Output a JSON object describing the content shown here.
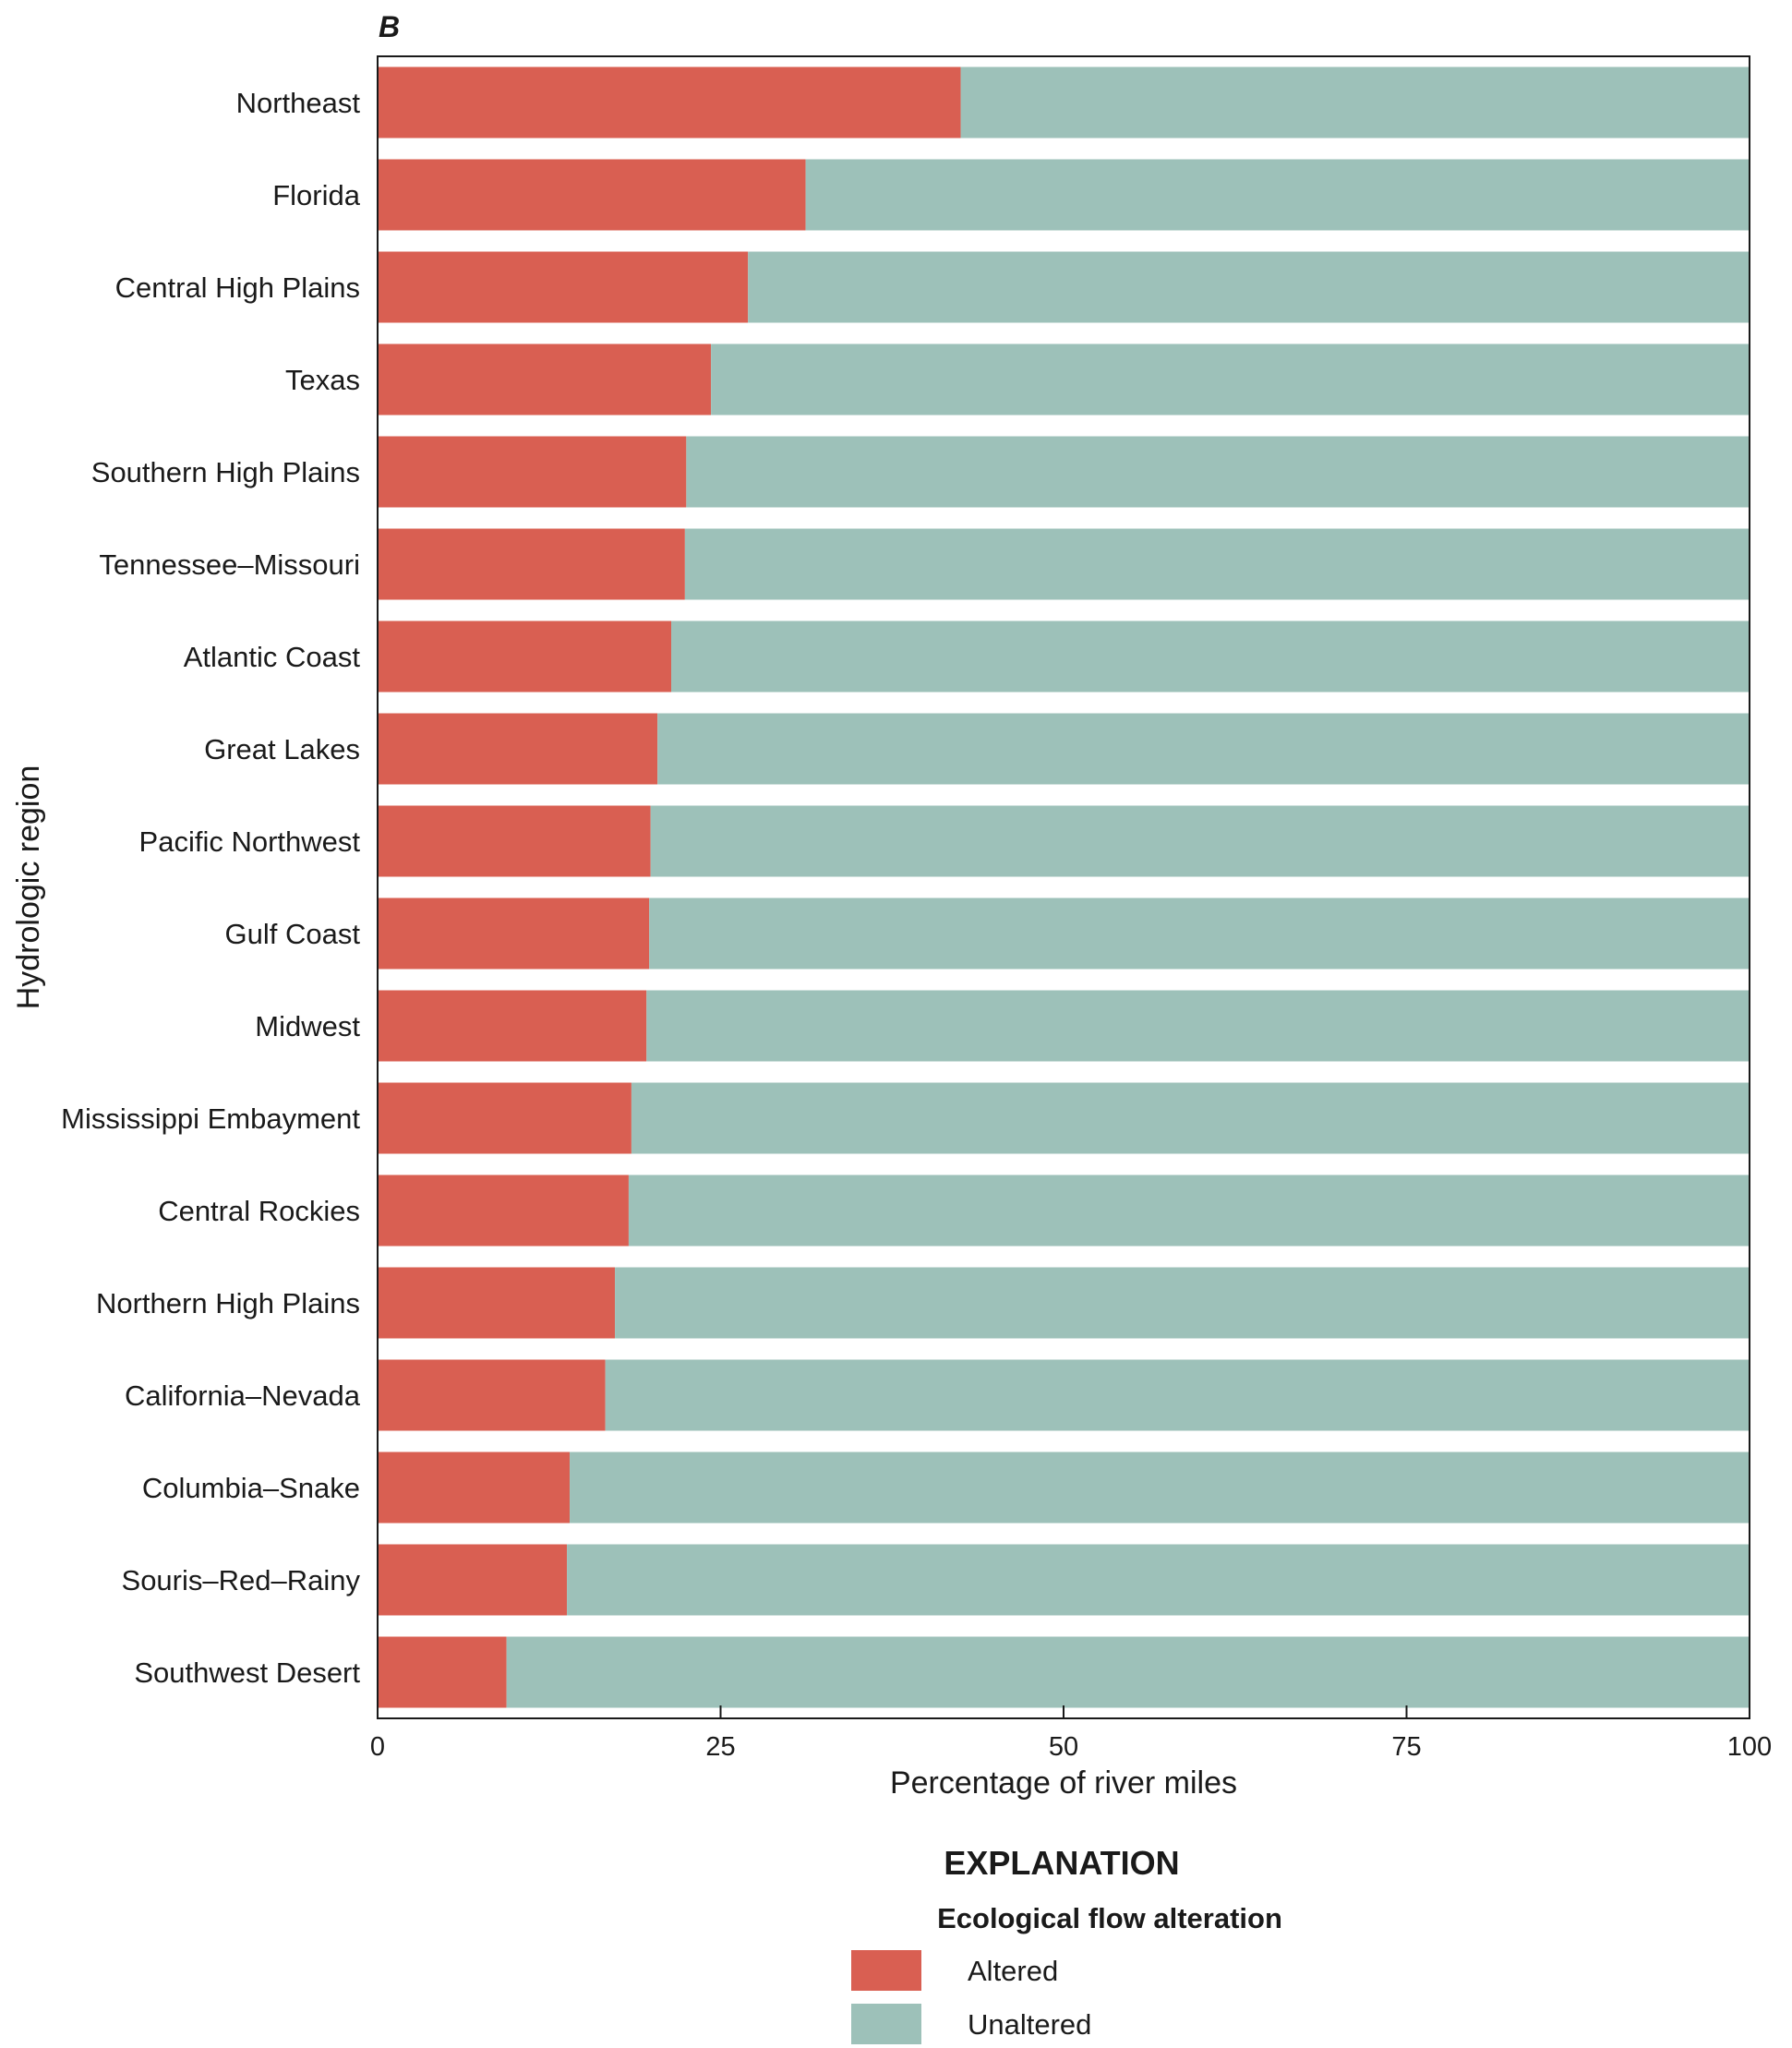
{
  "chart_data": {
    "type": "bar",
    "orientation": "horizontal",
    "stacked": true,
    "panel_label": "B",
    "xlabel": "Percentage of river miles",
    "ylabel": "Hydrologic region",
    "xlim": [
      0,
      100
    ],
    "xticks": [
      0,
      25,
      50,
      75,
      100
    ],
    "grid": false,
    "categories": [
      "Northeast",
      "Florida",
      "Central High Plains",
      "Texas",
      "Southern High Plains",
      "Tennessee–Missouri",
      "Atlantic Coast",
      "Great Lakes",
      "Pacific Northwest",
      "Gulf Coast",
      "Midwest",
      "Mississippi Embayment",
      "Central Rockies",
      "Northern High Plains",
      "California–Nevada",
      "Columbia–Snake",
      "Souris–Red–Rainy",
      "Southwest Desert"
    ],
    "series": [
      {
        "name": "Altered",
        "color": "#d95f52",
        "values": [
          42.5,
          31.2,
          27.0,
          24.3,
          22.5,
          22.4,
          21.4,
          20.4,
          19.9,
          19.8,
          19.6,
          18.5,
          18.3,
          17.3,
          16.6,
          14.0,
          13.8,
          9.4
        ]
      },
      {
        "name": "Unaltered",
        "color": "#9dc1b9",
        "values": [
          57.5,
          68.8,
          73.0,
          75.7,
          77.5,
          77.6,
          78.6,
          79.6,
          80.1,
          80.2,
          80.4,
          81.5,
          81.7,
          82.7,
          83.4,
          86.0,
          86.2,
          90.6
        ]
      }
    ],
    "legend": {
      "placement": "bottom",
      "heading": "EXPLANATION",
      "subheading": "Ecological flow alteration"
    }
  }
}
